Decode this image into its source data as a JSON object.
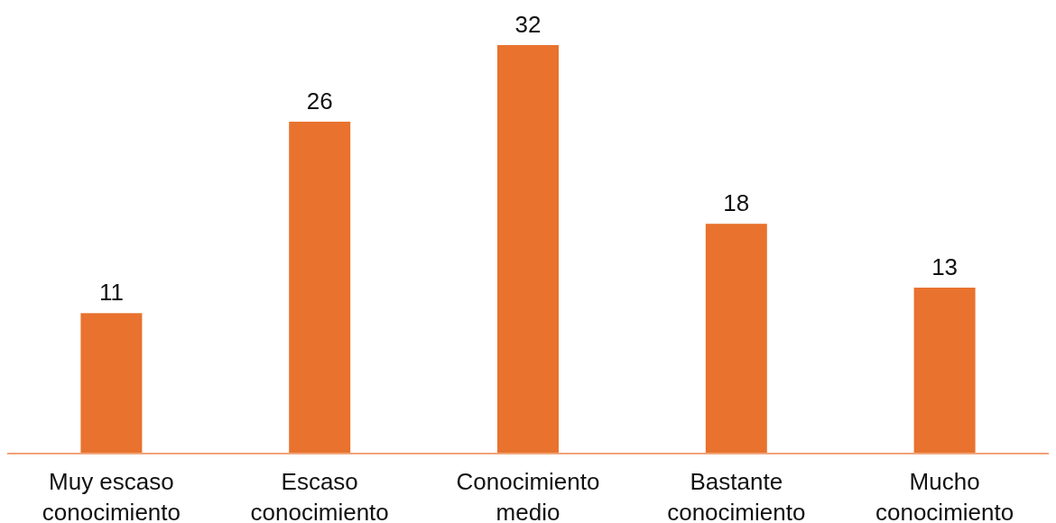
{
  "chart_data": {
    "type": "bar",
    "categories": [
      "Muy escaso conocimiento",
      "Escaso conocimiento",
      "Conocimiento medio",
      "Bastante conocimiento",
      "Mucho conocimiento"
    ],
    "values": [
      11,
      26,
      32,
      18,
      13
    ],
    "color": "#e8722e",
    "data_labels": true
  }
}
